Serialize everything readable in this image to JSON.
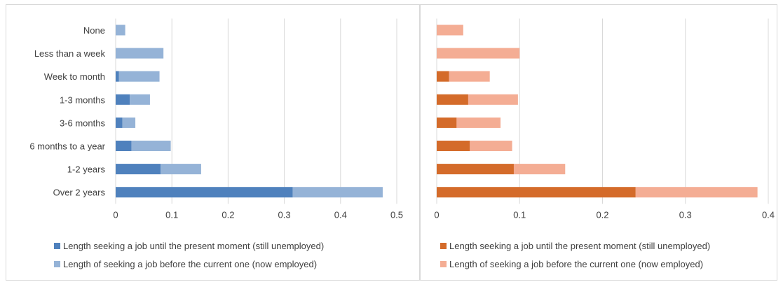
{
  "chart_data": [
    {
      "type": "bar",
      "orientation": "horizontal",
      "stacked": true,
      "categories": [
        "None",
        "Less than a week",
        "Week to month",
        "1-3 months",
        "3-6 months",
        "6 months to a year",
        "1-2 years",
        "Over 2 years"
      ],
      "series": [
        {
          "name": "Length seeking a job until the present moment (still unemployed)",
          "color": "#4f81bd",
          "values": [
            0,
            0,
            0.006,
            0.025,
            0.012,
            0.028,
            0.08,
            0.315
          ]
        },
        {
          "name": "Length of seeking a job before the current one (now employed)",
          "color": "#95b3d7",
          "values": [
            0.017,
            0.085,
            0.072,
            0.036,
            0.023,
            0.07,
            0.072,
            0.16
          ]
        }
      ],
      "xlim": [
        0,
        0.5
      ],
      "xticks": [
        "0",
        "0.1",
        "0.2",
        "0.3",
        "0.4",
        "0.5"
      ],
      "grid": true,
      "legend": "bottom"
    },
    {
      "type": "bar",
      "orientation": "horizontal",
      "stacked": true,
      "categories": [
        "None",
        "Less than a week",
        "Week to month",
        "1-3 months",
        "3-6 months",
        "6 months to a year",
        "1-2 years",
        "Over 2 years"
      ],
      "series": [
        {
          "name": "Length seeking a job until the present moment (still unemployed)",
          "color": "#d46b2a",
          "values": [
            0,
            0,
            0.015,
            0.038,
            0.024,
            0.04,
            0.093,
            0.24
          ]
        },
        {
          "name": "Length of seeking a job before the current one (now employed)",
          "color": "#f4ad94",
          "values": [
            0.032,
            0.1,
            0.049,
            0.06,
            0.053,
            0.051,
            0.062,
            0.147
          ]
        }
      ],
      "xlim": [
        0,
        0.4
      ],
      "xticks": [
        "0",
        "0.1",
        "0.2",
        "0.3",
        "0.4"
      ],
      "grid": true,
      "legend": "bottom"
    }
  ]
}
